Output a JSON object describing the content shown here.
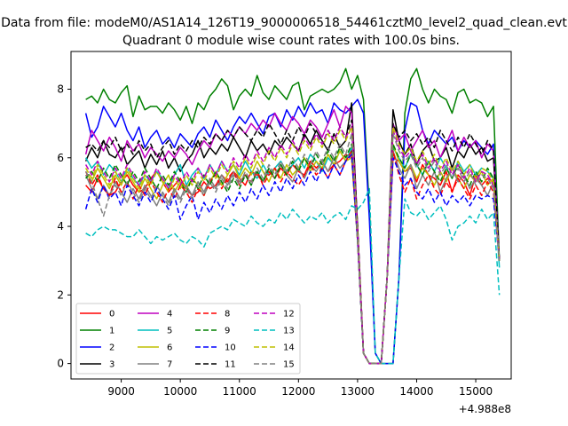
{
  "chart_data": {
    "type": "line",
    "suptitle": "Data from file: modeM0/AS1A14_126T19_9000006518_54461cztM0_level2_quad_clean.evt",
    "title": "Quadrant 0 module wise count rates with 100.0s bins.",
    "xlabel": "",
    "ylabel": "",
    "x_offset_label": "+4.988e8",
    "xlim": [
      8150,
      15600
    ],
    "ylim": [
      -0.45,
      9.1
    ],
    "xticks": [
      9000,
      10000,
      11000,
      12000,
      13000,
      14000,
      15000
    ],
    "yticks": [
      0,
      2,
      4,
      6,
      8
    ],
    "grid": false,
    "legend_position": "lower-left",
    "legend_columns": 4,
    "x_start": 8400,
    "x_step": 100,
    "series": [
      {
        "name": "0",
        "color": "#ff0000",
        "dash": "solid",
        "values": [
          5.2,
          5.0,
          5.4,
          5.1,
          4.9,
          5.0,
          5.3,
          5.5,
          5.2,
          5.0,
          5.1,
          5.4,
          5.6,
          5.3,
          5.0,
          5.2,
          5.4,
          5.1,
          4.9,
          5.0,
          5.3,
          5.1,
          5.2,
          5.5,
          5.3,
          5.6,
          5.4,
          5.2,
          5.6,
          5.5,
          5.3,
          5.6,
          5.4,
          5.7,
          5.5,
          5.8,
          5.6,
          5.5,
          5.9,
          5.7,
          5.9,
          5.6,
          5.8,
          5.9,
          6.1,
          6.0,
          3.6,
          0.3,
          0.0,
          0.0,
          0.0,
          2.5,
          6.0,
          5.9,
          5.6,
          5.7,
          5.3,
          5.8,
          5.5,
          5.4,
          5.2,
          5.6,
          5.0,
          5.5,
          5.3,
          4.9,
          5.5,
          5.2,
          5.4,
          5.3,
          3.0
        ]
      },
      {
        "name": "1",
        "color": "#008000",
        "dash": "solid",
        "values": [
          7.7,
          7.8,
          7.6,
          8.0,
          7.7,
          7.6,
          7.9,
          8.1,
          7.2,
          7.8,
          7.4,
          7.5,
          7.5,
          7.3,
          7.6,
          7.4,
          7.1,
          7.5,
          7.0,
          7.6,
          7.4,
          7.8,
          8.0,
          8.3,
          8.1,
          7.4,
          7.8,
          8.0,
          7.8,
          8.4,
          7.9,
          7.7,
          8.1,
          7.9,
          7.7,
          8.1,
          8.2,
          7.4,
          7.8,
          7.9,
          8.0,
          7.9,
          8.0,
          8.2,
          8.6,
          8.0,
          8.4,
          7.7,
          4.5,
          0.3,
          0.0,
          0.0,
          0.0,
          2.5,
          7.3,
          8.3,
          8.6,
          8.0,
          7.6,
          8.0,
          7.8,
          7.7,
          7.3,
          7.9,
          8.0,
          7.6,
          7.7,
          7.6,
          7.2,
          7.5,
          3.0
        ]
      },
      {
        "name": "2",
        "color": "#0000ff",
        "dash": "solid",
        "values": [
          7.3,
          6.6,
          6.9,
          7.5,
          7.2,
          6.9,
          7.3,
          6.8,
          6.5,
          6.9,
          6.3,
          6.6,
          6.8,
          6.4,
          6.6,
          6.3,
          6.7,
          6.5,
          6.3,
          6.7,
          6.9,
          6.6,
          7.1,
          6.8,
          6.5,
          6.9,
          7.2,
          7.0,
          7.3,
          7.0,
          6.7,
          7.2,
          7.3,
          6.9,
          7.4,
          7.1,
          7.5,
          7.2,
          7.6,
          7.3,
          7.4,
          7.0,
          7.6,
          7.4,
          7.3,
          7.5,
          7.7,
          7.3,
          4.2,
          0.3,
          0.0,
          0.0,
          0.0,
          2.5,
          6.8,
          7.6,
          7.5,
          6.8,
          6.4,
          6.8,
          6.6,
          6.4,
          6.6,
          6.2,
          6.5,
          6.3,
          6.5,
          6.3,
          6.1,
          6.4,
          3.0
        ]
      },
      {
        "name": "3",
        "color": "#000000",
        "dash": "solid",
        "values": [
          5.9,
          6.3,
          6.0,
          6.5,
          6.1,
          6.0,
          6.3,
          5.8,
          6.0,
          6.2,
          5.7,
          6.1,
          5.8,
          6.2,
          5.7,
          6.0,
          5.6,
          5.9,
          6.1,
          6.5,
          6.0,
          6.3,
          6.1,
          6.4,
          6.2,
          6.6,
          6.3,
          6.0,
          6.5,
          6.2,
          6.4,
          6.1,
          6.5,
          6.3,
          6.6,
          6.4,
          6.2,
          6.7,
          6.4,
          6.8,
          6.5,
          6.2,
          6.7,
          6.3,
          6.5,
          7.6,
          4.0,
          0.3,
          0.0,
          0.0,
          0.0,
          2.5,
          7.4,
          6.5,
          6.1,
          6.4,
          5.8,
          6.2,
          6.4,
          5.9,
          6.0,
          6.3,
          5.7,
          6.2,
          6.0,
          6.4,
          6.1,
          6.3,
          5.9,
          6.0,
          3.0
        ]
      },
      {
        "name": "4",
        "color": "#bf00bf",
        "dash": "solid",
        "values": [
          6.1,
          6.8,
          6.5,
          6.2,
          6.6,
          6.3,
          5.9,
          6.5,
          6.2,
          6.4,
          6.0,
          6.3,
          6.1,
          5.9,
          6.2,
          6.0,
          6.3,
          6.1,
          5.8,
          6.2,
          6.5,
          6.3,
          6.7,
          6.5,
          6.8,
          6.6,
          6.9,
          6.7,
          7.0,
          6.8,
          7.1,
          6.9,
          7.3,
          7.0,
          6.8,
          7.2,
          7.0,
          6.7,
          7.1,
          6.9,
          6.6,
          7.0,
          7.4,
          6.9,
          7.5,
          7.3,
          4.0,
          0.3,
          0.0,
          0.0,
          0.0,
          2.5,
          7.0,
          6.5,
          6.7,
          6.2,
          6.5,
          6.8,
          6.3,
          6.5,
          6.0,
          6.4,
          6.8,
          6.2,
          6.6,
          6.3,
          6.5,
          6.0,
          6.4,
          6.2,
          3.0
        ]
      },
      {
        "name": "5",
        "color": "#00bfbf",
        "dash": "solid",
        "values": [
          6.0,
          5.7,
          5.9,
          5.5,
          5.8,
          5.6,
          5.3,
          5.7,
          5.4,
          5.2,
          5.5,
          5.3,
          5.6,
          5.4,
          5.1,
          5.5,
          5.8,
          5.2,
          5.5,
          5.7,
          5.4,
          5.8,
          5.5,
          5.9,
          5.6,
          5.8,
          5.5,
          5.9,
          5.6,
          5.4,
          5.8,
          5.5,
          5.7,
          5.9,
          5.6,
          5.8,
          6.0,
          5.7,
          6.1,
          5.9,
          5.6,
          6.0,
          5.8,
          6.2,
          5.9,
          6.3,
          3.6,
          0.3,
          0.0,
          0.0,
          0.0,
          2.5,
          6.3,
          6.0,
          5.7,
          6.1,
          5.8,
          5.5,
          5.9,
          5.6,
          6.0,
          5.7,
          5.4,
          5.9,
          5.6,
          5.8,
          5.5,
          5.7,
          5.6,
          5.4,
          2.8
        ]
      },
      {
        "name": "6",
        "color": "#bfbf00",
        "dash": "solid",
        "values": [
          5.6,
          5.3,
          5.7,
          5.4,
          5.1,
          5.5,
          5.2,
          5.6,
          5.3,
          5.0,
          5.4,
          5.1,
          4.8,
          5.2,
          5.5,
          5.0,
          5.3,
          5.1,
          5.4,
          5.2,
          4.9,
          5.3,
          5.6,
          5.2,
          5.5,
          5.8,
          5.4,
          5.7,
          5.5,
          5.9,
          5.6,
          5.3,
          5.7,
          5.4,
          5.8,
          5.5,
          5.7,
          6.0,
          5.6,
          5.9,
          5.7,
          6.1,
          5.8,
          6.2,
          5.9,
          6.0,
          3.6,
          0.3,
          0.0,
          0.0,
          0.0,
          2.5,
          6.4,
          5.9,
          5.6,
          5.8,
          5.4,
          5.7,
          5.5,
          5.2,
          5.6,
          5.3,
          5.7,
          5.4,
          5.1,
          5.5,
          5.3,
          5.6,
          5.2,
          5.4,
          3.0
        ]
      },
      {
        "name": "7",
        "color": "#808080",
        "dash": "solid",
        "values": [
          5.5,
          5.1,
          4.8,
          5.2,
          4.9,
          5.3,
          5.0,
          4.7,
          5.1,
          4.8,
          5.2,
          4.9,
          4.6,
          5.0,
          4.7,
          5.1,
          4.8,
          5.2,
          4.9,
          5.3,
          5.0,
          5.4,
          5.1,
          5.5,
          5.2,
          5.6,
          5.3,
          5.5,
          5.2,
          5.6,
          5.3,
          5.7,
          5.4,
          5.8,
          5.5,
          5.3,
          5.7,
          5.4,
          5.8,
          5.6,
          5.9,
          5.6,
          6.0,
          5.7,
          5.9,
          6.2,
          3.6,
          0.3,
          0.0,
          0.0,
          0.0,
          2.5,
          6.2,
          5.7,
          5.4,
          5.8,
          5.1,
          5.5,
          5.2,
          5.6,
          5.0,
          5.4,
          5.7,
          5.3,
          5.5,
          5.1,
          5.4,
          5.2,
          4.9,
          5.3,
          3.0
        ]
      },
      {
        "name": "8",
        "color": "#ff0000",
        "dash": "dashed",
        "values": [
          5.6,
          5.2,
          5.5,
          5.1,
          4.9,
          5.4,
          5.0,
          5.3,
          4.8,
          5.2,
          4.9,
          5.3,
          5.0,
          4.7,
          5.1,
          4.8,
          5.2,
          5.0,
          4.7,
          5.1,
          4.9,
          5.3,
          5.5,
          5.1,
          5.4,
          5.6,
          5.2,
          5.5,
          5.3,
          5.6,
          5.2,
          5.5,
          5.7,
          5.3,
          5.6,
          5.4,
          5.2,
          5.5,
          5.8,
          5.5,
          5.7,
          5.4,
          5.8,
          5.5,
          5.9,
          6.2,
          3.6,
          0.3,
          0.0,
          0.0,
          0.0,
          2.5,
          6.2,
          5.5,
          5.0,
          5.4,
          4.8,
          5.2,
          5.5,
          5.1,
          4.9,
          5.3,
          5.0,
          5.4,
          5.1,
          4.8,
          5.2,
          4.9,
          5.3,
          5.0,
          3.0
        ]
      },
      {
        "name": "9",
        "color": "#008000",
        "dash": "dashed",
        "values": [
          5.4,
          5.6,
          5.3,
          5.7,
          5.4,
          5.8,
          5.5,
          5.2,
          5.6,
          5.3,
          5.7,
          5.4,
          5.1,
          5.5,
          5.2,
          5.6,
          5.3,
          5.0,
          5.4,
          5.1,
          5.5,
          5.2,
          5.6,
          5.3,
          5.0,
          5.4,
          5.1,
          5.5,
          5.2,
          5.6,
          5.3,
          5.7,
          5.4,
          5.8,
          5.5,
          5.9,
          5.6,
          6.0,
          5.7,
          6.1,
          5.8,
          6.2,
          5.9,
          6.3,
          6.0,
          6.4,
          3.6,
          0.3,
          0.0,
          0.0,
          0.0,
          2.5,
          6.4,
          6.0,
          5.7,
          6.1,
          5.8,
          5.5,
          5.9,
          5.6,
          5.3,
          5.7,
          5.4,
          5.8,
          5.5,
          5.2,
          5.6,
          5.3,
          5.7,
          5.4,
          3.0
        ]
      },
      {
        "name": "10",
        "color": "#0000ff",
        "dash": "dashed",
        "values": [
          4.5,
          5.1,
          4.7,
          5.2,
          4.8,
          5.0,
          4.6,
          5.2,
          4.9,
          4.6,
          5.0,
          4.7,
          5.1,
          4.8,
          4.5,
          4.9,
          4.2,
          4.6,
          4.9,
          4.2,
          4.7,
          4.4,
          4.8,
          4.5,
          4.9,
          4.6,
          5.0,
          4.7,
          5.1,
          4.8,
          5.2,
          4.9,
          5.3,
          5.0,
          5.4,
          5.1,
          5.5,
          5.2,
          5.6,
          5.3,
          5.7,
          5.4,
          5.8,
          5.5,
          5.9,
          6.1,
          3.6,
          0.3,
          0.0,
          0.0,
          0.0,
          2.5,
          6.0,
          5.6,
          5.2,
          5.4,
          5.0,
          4.8,
          5.1,
          4.7,
          5.0,
          4.6,
          4.9,
          4.7,
          4.9,
          4.6,
          4.9,
          4.8,
          4.9,
          4.8,
          3.0
        ]
      },
      {
        "name": "11",
        "color": "#000000",
        "dash": "dashed",
        "values": [
          6.3,
          6.4,
          6.2,
          6.5,
          6.3,
          6.6,
          6.2,
          6.4,
          6.1,
          6.5,
          6.2,
          6.4,
          6.0,
          6.3,
          6.5,
          6.1,
          6.4,
          6.2,
          6.5,
          6.3,
          6.6,
          6.4,
          6.7,
          6.5,
          6.8,
          6.6,
          6.9,
          6.7,
          6.5,
          6.8,
          6.6,
          7.0,
          6.7,
          6.4,
          6.8,
          6.5,
          6.9,
          6.6,
          7.0,
          6.7,
          6.4,
          6.8,
          6.5,
          6.9,
          6.6,
          7.1,
          4.0,
          0.3,
          0.0,
          0.0,
          0.0,
          2.5,
          7.0,
          6.6,
          6.8,
          6.5,
          6.7,
          6.4,
          6.6,
          6.3,
          6.8,
          6.5,
          6.2,
          6.6,
          6.3,
          6.7,
          6.4,
          6.1,
          6.5,
          6.2,
          3.0
        ]
      },
      {
        "name": "12",
        "color": "#bf00bf",
        "dash": "dashed",
        "values": [
          5.8,
          5.5,
          5.9,
          5.6,
          5.3,
          5.7,
          5.4,
          5.8,
          5.5,
          5.2,
          5.6,
          5.3,
          5.7,
          5.4,
          5.1,
          5.5,
          5.2,
          5.6,
          5.3,
          5.7,
          5.4,
          5.8,
          5.5,
          5.9,
          5.6,
          6.0,
          5.7,
          6.1,
          5.8,
          6.2,
          5.9,
          6.3,
          6.0,
          6.4,
          6.1,
          6.5,
          6.2,
          6.6,
          6.3,
          6.7,
          6.4,
          6.8,
          6.5,
          6.9,
          6.6,
          6.9,
          3.8,
          0.3,
          0.0,
          0.0,
          0.0,
          2.5,
          6.8,
          6.3,
          6.0,
          6.2,
          5.8,
          6.1,
          5.7,
          6.0,
          5.6,
          5.9,
          5.5,
          5.8,
          5.4,
          5.7,
          5.3,
          5.6,
          5.5,
          5.2,
          3.0
        ]
      },
      {
        "name": "13",
        "color": "#00bfbf",
        "dash": "dashed",
        "values": [
          3.8,
          3.7,
          3.9,
          4.0,
          3.9,
          3.9,
          3.8,
          3.7,
          3.7,
          3.9,
          3.7,
          3.5,
          3.7,
          3.6,
          3.7,
          3.8,
          3.6,
          3.5,
          3.7,
          3.6,
          3.4,
          3.8,
          3.9,
          4.0,
          3.9,
          4.2,
          4.1,
          4.0,
          4.3,
          4.1,
          4.0,
          4.2,
          4.1,
          4.4,
          4.2,
          4.5,
          4.3,
          4.1,
          4.3,
          4.2,
          4.4,
          4.1,
          4.3,
          4.4,
          4.2,
          4.6,
          4.5,
          4.7,
          5.1,
          0.3,
          0.0,
          0.0,
          0.0,
          2.5,
          4.8,
          4.4,
          4.3,
          4.5,
          4.2,
          4.4,
          4.6,
          4.2,
          3.6,
          4.0,
          4.1,
          4.3,
          4.1,
          4.5,
          4.2,
          4.4,
          2.0
        ]
      },
      {
        "name": "14",
        "color": "#bfbf00",
        "dash": "dashed",
        "values": [
          5.7,
          5.4,
          5.8,
          5.5,
          5.2,
          5.6,
          5.3,
          5.7,
          5.4,
          5.1,
          5.5,
          5.2,
          5.6,
          5.3,
          5.0,
          5.4,
          5.1,
          5.5,
          5.2,
          5.6,
          5.3,
          5.7,
          5.4,
          5.8,
          5.5,
          5.9,
          5.6,
          6.0,
          5.7,
          6.1,
          5.8,
          6.2,
          5.9,
          6.3,
          6.0,
          6.4,
          6.1,
          6.5,
          6.2,
          6.6,
          6.3,
          6.7,
          6.4,
          6.8,
          6.5,
          6.9,
          3.8,
          0.3,
          0.0,
          0.0,
          0.0,
          2.5,
          6.9,
          6.4,
          6.1,
          6.3,
          5.9,
          6.2,
          5.8,
          6.1,
          5.7,
          6.0,
          5.6,
          5.9,
          5.5,
          5.8,
          5.4,
          5.7,
          5.6,
          5.3,
          3.0
        ]
      },
      {
        "name": "15",
        "color": "#808080",
        "dash": "dashed",
        "values": [
          5.6,
          5.3,
          4.8,
          4.3,
          4.9,
          5.2,
          4.9,
          5.3,
          5.0,
          4.7,
          5.1,
          4.8,
          5.2,
          4.9,
          4.6,
          5.0,
          4.7,
          5.1,
          4.8,
          5.2,
          4.9,
          5.3,
          5.0,
          5.4,
          5.1,
          5.5,
          5.2,
          5.6,
          5.3,
          5.7,
          5.4,
          5.8,
          5.5,
          5.9,
          5.6,
          6.0,
          5.7,
          6.1,
          5.8,
          6.2,
          5.9,
          6.3,
          6.0,
          6.4,
          6.1,
          6.7,
          3.6,
          0.3,
          0.0,
          0.0,
          0.0,
          2.5,
          6.7,
          6.2,
          5.9,
          6.1,
          5.7,
          6.0,
          5.6,
          5.9,
          5.5,
          5.8,
          5.4,
          5.7,
          5.3,
          5.6,
          5.2,
          5.5,
          5.4,
          5.1,
          3.0
        ]
      }
    ]
  }
}
